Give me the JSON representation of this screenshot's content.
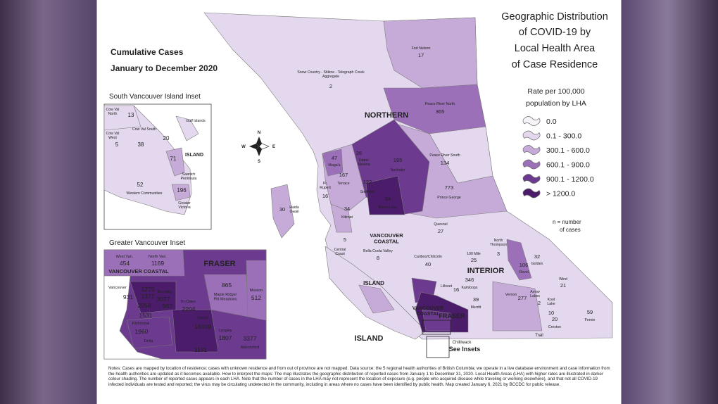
{
  "title": [
    "Geographic Distribution",
    "of COVID-19 by",
    "Local Health Area",
    "of Case Residence"
  ],
  "subtitle": [
    "Cumulative Cases",
    "January to December 2020"
  ],
  "legend": {
    "title": [
      "Rate per 100,000",
      "population by LHA"
    ],
    "items": [
      {
        "label": "0.0",
        "color": "#f6f3f9"
      },
      {
        "label": "0.1 - 300.0",
        "color": "#e4d8ee"
      },
      {
        "label": "300.1 - 600.0",
        "color": "#c6abd9"
      },
      {
        "label": "600.1 - 900.0",
        "color": "#9c70b9"
      },
      {
        "label": "900.1 - 1200.0",
        "color": "#6c3a8f"
      },
      {
        "label": "> 1200.0",
        "color": "#4b1c6a"
      }
    ],
    "note": [
      "n = number",
      "of cases"
    ]
  },
  "compass": [
    "N",
    "E",
    "S",
    "W"
  ],
  "regions": [
    "NORTHERN",
    [
      "VANCOUVER",
      "COASTAL"
    ],
    "INTERIOR",
    "ISLAND",
    [
      "VANCOUVER",
      "COASTAL"
    ],
    "FRASER",
    "ISLAND"
  ],
  "areas": [
    {
      "name": "Fort Nelson",
      "count": 17
    },
    {
      "name": [
        "Snow Country - Stikine - Telegraph Creek",
        "Aggregate"
      ],
      "count": 2
    },
    {
      "name": "Peace River North",
      "count": 365
    },
    {
      "name": "Peace River South",
      "count": 134
    },
    {
      "name": [
        "Upper",
        "Skeena"
      ],
      "count": 26
    },
    {
      "name": "Nechako",
      "count": 185
    },
    {
      "name": "Nisga'a",
      "count": 47
    },
    {
      "name": "Terrace",
      "count": 167
    },
    {
      "name": "Smithers",
      "count": 122
    },
    {
      "name": "Prince George",
      "count": 773
    },
    {
      "name": "Burns Lake",
      "count": 84
    },
    {
      "name": [
        "Pr.",
        "Rupert"
      ],
      "count": 16
    },
    {
      "name": [
        "Haida",
        "Gwaii"
      ],
      "count": 30
    },
    {
      "name": "Kitimat",
      "count": 34
    },
    {
      "name": "Quesnel",
      "count": 27
    },
    {
      "name": [
        "Central",
        "Coast"
      ],
      "count": 5
    },
    {
      "name": "Bella Coola Valley",
      "count": 8
    },
    {
      "name": "Cariboo/Chilcotin",
      "count": 40
    },
    {
      "name": "100 Mile",
      "count": 25
    },
    {
      "name": [
        "North",
        "Thompson"
      ],
      "count": 3
    },
    {
      "name": "Golden",
      "count": 32
    },
    {
      "name": "Revel.",
      "count": 106
    },
    {
      "name": "Kamloops",
      "count": 346
    },
    {
      "name": "Lillooet",
      "count": 16
    },
    {
      "name": "Wind",
      "count": 21
    },
    {
      "name": "Vernon",
      "count": 277
    },
    {
      "name": [
        "Arrow",
        "Lakes"
      ],
      "count": 2
    },
    {
      "name": [
        "Koot",
        "Lake"
      ],
      "count": 10
    },
    {
      "name": "Creston",
      "count": 20
    },
    {
      "name": "Fernie",
      "count": 59
    },
    {
      "name": "Merritt",
      "count": 39
    }
  ],
  "places": [
    "Chilliwack",
    "Trail"
  ],
  "see_insets": "See Insets",
  "south_island_inset": {
    "title": "South Vancouver Island Inset",
    "region": "ISLAND",
    "areas": [
      {
        "name": [
          "Cow Val",
          "North"
        ],
        "count": 13
      },
      {
        "name": "Gulf Islands",
        "count": 20
      },
      {
        "name": [
          "Cow Val",
          "West"
        ],
        "count": 5
      },
      {
        "name": "Cow Val South",
        "count": 38
      },
      {
        "name": [
          "Saanich",
          "Peninsula"
        ],
        "count": 71
      },
      {
        "name": "Western Communities",
        "count": 52
      },
      {
        "name": [
          "Greater",
          "Victoria"
        ],
        "count": 196
      }
    ]
  },
  "vancouver_inset": {
    "title": "Greater Vancouver Inset",
    "regions": [
      "VANCOUVER COASTAL",
      "FRASER"
    ],
    "areas": [
      {
        "name": "West Van.",
        "count": 454
      },
      {
        "name": "North Van.",
        "count": 1169
      },
      {
        "name": "Tri-Cities",
        "count": 2204
      },
      {
        "name": [
          "Maple Ridge/",
          "Pitt Meadows"
        ],
        "count": 865
      },
      {
        "name": "Mission",
        "count": 512
      },
      {
        "name": "Vancouver",
        "count": 931
      },
      {
        "count": 1225
      },
      {
        "count": 1377
      },
      {
        "count": 2058
      },
      {
        "name": "Burnaby",
        "count": 3077
      },
      {
        "count": 967
      },
      {
        "name": "Richmond",
        "count": 1531
      },
      {
        "name": "Delta",
        "count": 1960
      },
      {
        "name": "Surrey",
        "count": 16109
      },
      {
        "name": "Langley",
        "count": 1807
      },
      {
        "count": 1131
      },
      {
        "name": "Abbotsford",
        "count": 3377
      }
    ]
  },
  "notes": "Notes: Cases are mapped by location of residence; cases with unknown residence and from out of province are not mapped. Data source: the 5 regional health authorities of British Columbia; we operate in a live database environment and case information from the health authorities are updated as it becomes available. How to interpret the maps: The map illustrates the geographic distribution of reported cases from January 1 to December 31, 2020. Local Health Areas (LHA) with higher rates are illustrated in darker colour shading. The number of reported cases appears in each LHA. Note that the number of cases in the LHA may not represent the location of exposure (e.g. people who acquired disease while traveling or working elsewhere), and that not all COVID-19 infected individuals are tested and reported; the virus may be circulating undetected in the community, including in areas where no cases have been identified by public health. Map created January 6, 2021 by BCCDC for public release."
}
